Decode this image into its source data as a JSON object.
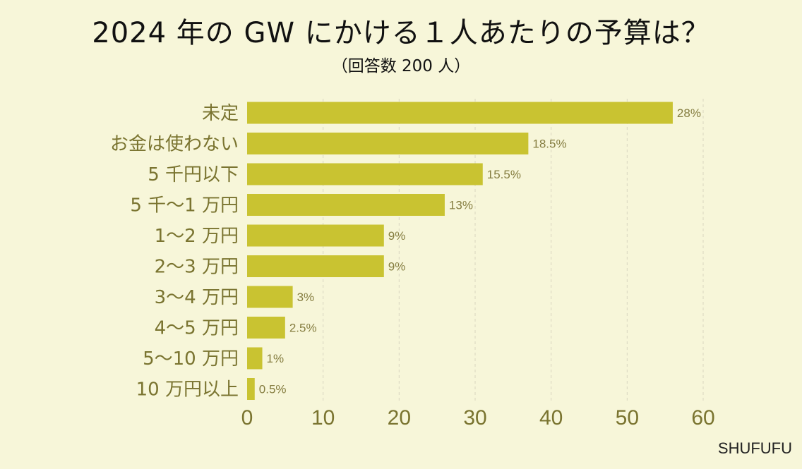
{
  "header": {
    "title": "2024 年の GW にかける１人あたりの予算は？",
    "subtitle": "（回答数 200 人）"
  },
  "brand": {
    "label": "SHUFUFU"
  },
  "colors": {
    "background": "#f7f6d9",
    "bar": "#c9c331",
    "label_text": "#7a7430",
    "value_text": "#857d40",
    "grid": "#d8d6c0"
  },
  "chart_data": {
    "type": "bar",
    "orientation": "horizontal",
    "categories": [
      "未定",
      "お金は使わない",
      "5 千円以下",
      "5 千〜1 万円",
      "1〜2 万円",
      "2〜3 万円",
      "3〜4 万円",
      "4〜5 万円",
      "5〜10 万円",
      "10 万円以上"
    ],
    "values": [
      56,
      37,
      31,
      26,
      18,
      18,
      6,
      5,
      2,
      1
    ],
    "data_labels": [
      "28%",
      "18.5%",
      "15.5%",
      "13%",
      "9%",
      "9%",
      "3%",
      "2.5%",
      "1%",
      "0.5%"
    ],
    "xlim": [
      0,
      60
    ],
    "xticks": [
      0,
      10,
      20,
      30,
      40,
      50,
      60
    ],
    "grid": "vertical dashed"
  }
}
